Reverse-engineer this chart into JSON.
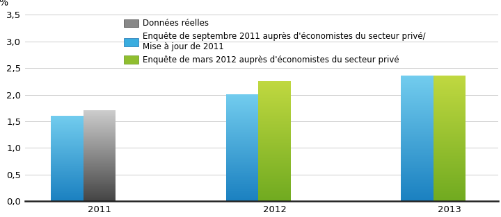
{
  "years": [
    2011,
    2012,
    2013
  ],
  "blue_values": [
    1.6,
    2.0,
    2.35
  ],
  "green_values": [
    null,
    2.25,
    2.35
  ],
  "dark_values": [
    1.7,
    null,
    null
  ],
  "ylabel": "%",
  "ylim": [
    0,
    3.5
  ],
  "yticks": [
    0.0,
    0.5,
    1.0,
    1.5,
    2.0,
    2.5,
    3.0,
    3.5
  ],
  "ytick_labels": [
    "0,0",
    "0,5",
    "1,0",
    "1,5",
    "2,0",
    "2,5",
    "3,0",
    "3,5"
  ],
  "legend1": "Données réelles",
  "legend2": "Enquête de septembre 2011 auprès d'économistes du secteur privé/\nMise à jour de 2011",
  "legend3": "Enquête de mars 2012 auprès d'économistes du secteur privé",
  "bar_width": 0.25,
  "background_color": "#ffffff",
  "blue_top": "#72ccee",
  "blue_bottom": "#1a80c0",
  "green_top": "#c0d840",
  "green_bottom": "#70aa20",
  "dark_top": "#cccccc",
  "dark_bottom": "#444444",
  "grid_color": "#cccccc",
  "spine_color": "#222222",
  "legend_fontsize": 8.5,
  "tick_fontsize": 9.5,
  "x_positions": [
    0.55,
    1.9,
    3.25
  ]
}
